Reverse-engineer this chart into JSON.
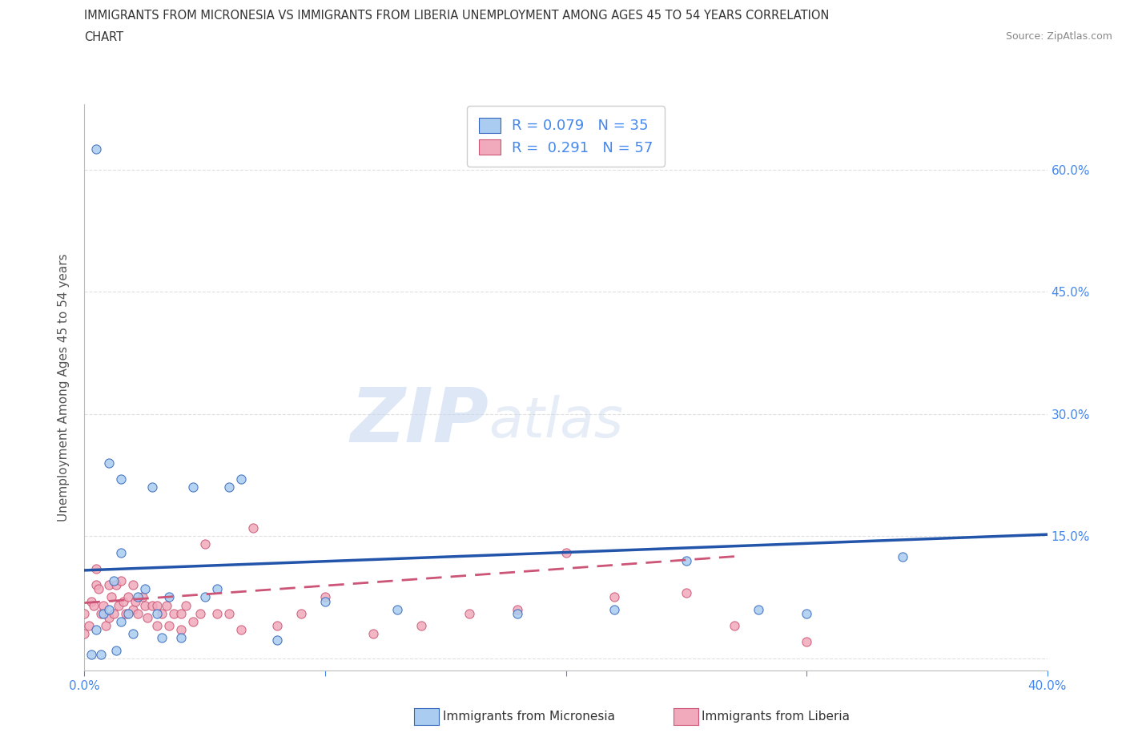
{
  "title_line1": "IMMIGRANTS FROM MICRONESIA VS IMMIGRANTS FROM LIBERIA UNEMPLOYMENT AMONG AGES 45 TO 54 YEARS CORRELATION",
  "title_line2": "CHART",
  "source": "Source: ZipAtlas.com",
  "ylabel": "Unemployment Among Ages 45 to 54 years",
  "xmin": 0.0,
  "xmax": 0.4,
  "ymin": -0.015,
  "ymax": 0.68,
  "micronesia_color": "#aaccf0",
  "liberia_color": "#f0aabb",
  "micronesia_edge_color": "#3366bb",
  "liberia_edge_color": "#cc5577",
  "micronesia_line_color": "#2255aa",
  "liberia_line_color": "#cc5577",
  "axis_label_color": "#4488ee",
  "text_color": "#333333",
  "source_color": "#888888",
  "grid_color": "#dddddd",
  "micronesia_scatter_x": [
    0.005,
    0.005,
    0.008,
    0.01,
    0.01,
    0.012,
    0.013,
    0.015,
    0.015,
    0.018,
    0.02,
    0.022,
    0.025,
    0.028,
    0.03,
    0.032,
    0.035,
    0.04,
    0.045,
    0.05,
    0.055,
    0.06,
    0.065,
    0.08,
    0.1,
    0.13,
    0.18,
    0.22,
    0.25,
    0.28,
    0.3,
    0.34,
    0.003,
    0.007,
    0.015
  ],
  "micronesia_scatter_y": [
    0.625,
    0.035,
    0.055,
    0.24,
    0.06,
    0.095,
    0.01,
    0.22,
    0.13,
    0.055,
    0.03,
    0.075,
    0.085,
    0.21,
    0.055,
    0.025,
    0.075,
    0.025,
    0.21,
    0.075,
    0.085,
    0.21,
    0.22,
    0.022,
    0.07,
    0.06,
    0.055,
    0.06,
    0.12,
    0.06,
    0.055,
    0.125,
    0.005,
    0.005,
    0.045
  ],
  "liberia_scatter_x": [
    0.0,
    0.0,
    0.002,
    0.003,
    0.004,
    0.005,
    0.005,
    0.006,
    0.007,
    0.008,
    0.009,
    0.01,
    0.01,
    0.011,
    0.012,
    0.013,
    0.014,
    0.015,
    0.016,
    0.017,
    0.018,
    0.02,
    0.02,
    0.021,
    0.022,
    0.024,
    0.025,
    0.026,
    0.028,
    0.03,
    0.03,
    0.032,
    0.034,
    0.035,
    0.037,
    0.04,
    0.04,
    0.042,
    0.045,
    0.048,
    0.05,
    0.055,
    0.06,
    0.065,
    0.07,
    0.08,
    0.09,
    0.1,
    0.12,
    0.14,
    0.16,
    0.18,
    0.2,
    0.22,
    0.25,
    0.27,
    0.3
  ],
  "liberia_scatter_y": [
    0.03,
    0.055,
    0.04,
    0.07,
    0.065,
    0.09,
    0.11,
    0.085,
    0.055,
    0.065,
    0.04,
    0.09,
    0.05,
    0.075,
    0.055,
    0.09,
    0.065,
    0.095,
    0.07,
    0.055,
    0.075,
    0.09,
    0.06,
    0.07,
    0.055,
    0.075,
    0.065,
    0.05,
    0.065,
    0.065,
    0.04,
    0.055,
    0.065,
    0.04,
    0.055,
    0.055,
    0.035,
    0.065,
    0.045,
    0.055,
    0.14,
    0.055,
    0.055,
    0.035,
    0.16,
    0.04,
    0.055,
    0.075,
    0.03,
    0.04,
    0.055,
    0.06,
    0.13,
    0.075,
    0.08,
    0.04,
    0.02
  ],
  "micronesia_trend_x": [
    0.0,
    0.4
  ],
  "micronesia_trend_y": [
    0.108,
    0.152
  ],
  "liberia_trend_x": [
    0.0,
    0.27
  ],
  "liberia_trend_y": [
    0.068,
    0.125
  ],
  "legend_label1": "R = 0.079   N = 35",
  "legend_label2": "R =  0.291   N = 57",
  "bottom_label1": "Immigrants from Micronesia",
  "bottom_label2": "Immigrants from Liberia",
  "background": "#ffffff"
}
